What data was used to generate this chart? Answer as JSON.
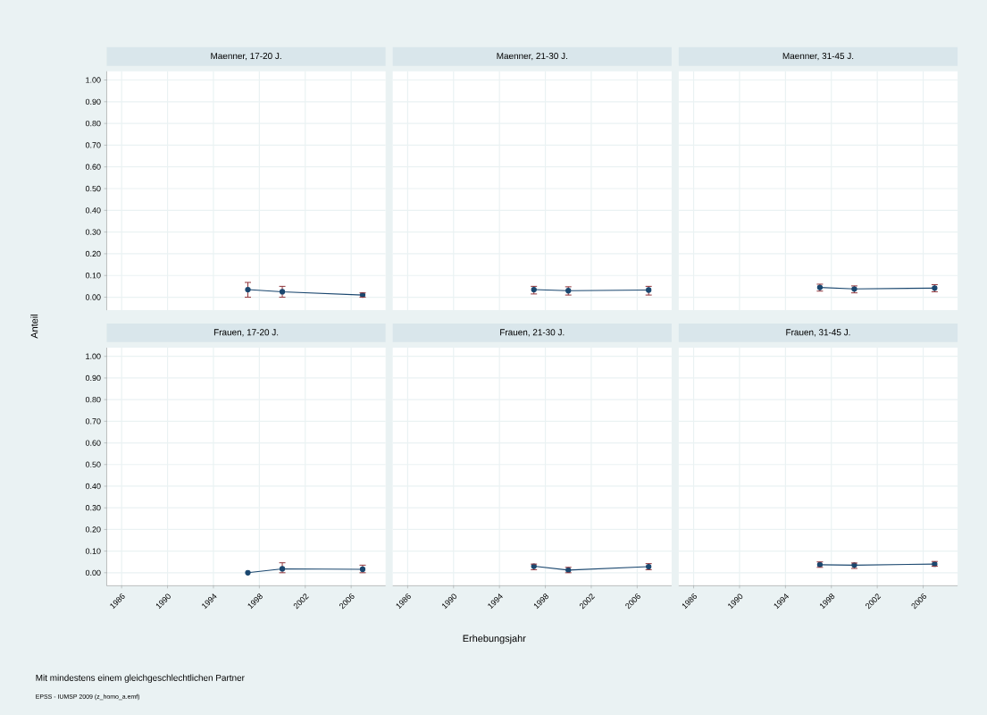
{
  "chart_data": [
    {
      "type": "line",
      "title": "Maenner, 17-20 J.",
      "ylabel": "Anteil",
      "x": [
        1997,
        2000,
        2007
      ],
      "values": [
        0.035,
        0.025,
        0.01
      ],
      "errors": [
        [
          0.0,
          0.068
        ],
        [
          0.0,
          0.05
        ],
        [
          0.0,
          0.02
        ]
      ],
      "color": "#1a476f",
      "marker": "circle",
      "grid": true,
      "tick_labels": "y",
      "xlim": [
        1984.7,
        2009
      ],
      "ylim": [
        -0.06,
        1.04
      ],
      "xticks": [
        1986,
        1990,
        1994,
        1998,
        2002,
        2006
      ],
      "yticks": [
        {
          "value": 0,
          "label": "0.00"
        },
        {
          "value": 0.1,
          "label": "0.10"
        },
        {
          "value": 0.2,
          "label": "0.20"
        },
        {
          "value": 0.3,
          "label": "0.30"
        },
        {
          "value": 0.4,
          "label": "0.40"
        },
        {
          "value": 0.5,
          "label": "0.50"
        },
        {
          "value": 0.6,
          "label": "0.60"
        },
        {
          "value": 0.7,
          "label": "0.70"
        },
        {
          "value": 0.8,
          "label": "0.80"
        },
        {
          "value": 0.9,
          "label": "0.90"
        },
        {
          "value": 1,
          "label": "1.00"
        }
      ]
    },
    {
      "type": "line",
      "title": "Maenner, 21-30 J.",
      "x": [
        1997,
        2000,
        2007
      ],
      "values": [
        0.035,
        0.03,
        0.033
      ],
      "errors": [
        [
          0.015,
          0.05
        ],
        [
          0.01,
          0.048
        ],
        [
          0.01,
          0.05
        ]
      ],
      "color": "#1a476f",
      "marker": "circle",
      "grid": true,
      "tick_labels": false,
      "xlim": [
        1984.7,
        2009
      ],
      "ylim": [
        -0.06,
        1.04
      ],
      "xticks": [
        1986,
        1990,
        1994,
        1998,
        2002,
        2006
      ],
      "yticks": [
        0,
        0.1,
        0.2,
        0.3,
        0.4,
        0.5,
        0.6,
        0.7,
        0.8,
        0.9,
        1
      ]
    },
    {
      "type": "line",
      "title": "Maenner, 31-45 J.",
      "x": [
        1997,
        2000,
        2007
      ],
      "values": [
        0.045,
        0.038,
        0.042
      ],
      "errors": [
        [
          0.028,
          0.06
        ],
        [
          0.02,
          0.052
        ],
        [
          0.025,
          0.058
        ]
      ],
      "color": "#1a476f",
      "marker": "circle",
      "grid": true,
      "tick_labels": false,
      "xlim": [
        1984.7,
        2009
      ],
      "ylim": [
        -0.06,
        1.04
      ],
      "xticks": [
        1986,
        1990,
        1994,
        1998,
        2002,
        2006
      ],
      "yticks": [
        0,
        0.1,
        0.2,
        0.3,
        0.4,
        0.5,
        0.6,
        0.7,
        0.8,
        0.9,
        1
      ]
    },
    {
      "type": "line",
      "title": "Frauen, 17-20 J.",
      "annotations": [
        "Mit mindestens einem gleichgeschlechtlichen Partner",
        "EPSS - IUMSP 2009 (z_homo_a.emf)"
      ],
      "x": [
        1997,
        2000,
        2007
      ],
      "values": [
        0.0,
        0.018,
        0.016
      ],
      "errors": [
        null,
        [
          0.0,
          0.046
        ],
        [
          0.0,
          0.035
        ]
      ],
      "color": "#1a476f",
      "marker": "circle",
      "grid": true,
      "xlim": [
        1984.7,
        2009
      ],
      "ylim": [
        -0.06,
        1.04
      ],
      "xticks": [
        1986,
        1990,
        1994,
        1998,
        2002,
        2006
      ],
      "yticks": [
        {
          "value": 0,
          "label": "0.00"
        },
        {
          "value": 0.1,
          "label": "0.10"
        },
        {
          "value": 0.2,
          "label": "0.20"
        },
        {
          "value": 0.3,
          "label": "0.30"
        },
        {
          "value": 0.4,
          "label": "0.40"
        },
        {
          "value": 0.5,
          "label": "0.50"
        },
        {
          "value": 0.6,
          "label": "0.60"
        },
        {
          "value": 0.7,
          "label": "0.70"
        },
        {
          "value": 0.8,
          "label": "0.80"
        },
        {
          "value": 0.9,
          "label": "0.90"
        },
        {
          "value": 1,
          "label": "1.00"
        }
      ]
    },
    {
      "type": "line",
      "title": "Frauen, 21-30 J.",
      "xlabel": "Erhebungsjahr",
      "x": [
        1997,
        2000,
        2007
      ],
      "values": [
        0.03,
        0.012,
        0.028
      ],
      "errors": [
        [
          0.014,
          0.04
        ],
        [
          0.0,
          0.025
        ],
        [
          0.014,
          0.042
        ]
      ],
      "color": "#1a476f",
      "marker": "circle",
      "grid": true,
      "tick_labels": "x",
      "xlim": [
        1984.7,
        2009
      ],
      "ylim": [
        -0.06,
        1.04
      ],
      "xticks": [
        1986,
        1990,
        1994,
        1998,
        2002,
        2006
      ],
      "yticks": [
        0,
        0.1,
        0.2,
        0.3,
        0.4,
        0.5,
        0.6,
        0.7,
        0.8,
        0.9,
        1
      ]
    },
    {
      "type": "line",
      "title": "Frauen, 31-45 J.",
      "x": [
        1997,
        2000,
        2007
      ],
      "values": [
        0.037,
        0.035,
        0.04
      ],
      "errors": [
        [
          0.025,
          0.05
        ],
        [
          0.02,
          0.045
        ],
        [
          0.03,
          0.052
        ]
      ],
      "color": "#1a476f",
      "marker": "circle",
      "grid": true,
      "tick_labels": "x",
      "xlim": [
        1984.7,
        2009
      ],
      "ylim": [
        -0.06,
        1.04
      ],
      "xticks": [
        1986,
        1990,
        1994,
        1998,
        2002,
        2006
      ],
      "yticks": [
        0,
        0.1,
        0.2,
        0.3,
        0.4,
        0.5,
        0.6,
        0.7,
        0.8,
        0.9,
        1
      ]
    }
  ]
}
